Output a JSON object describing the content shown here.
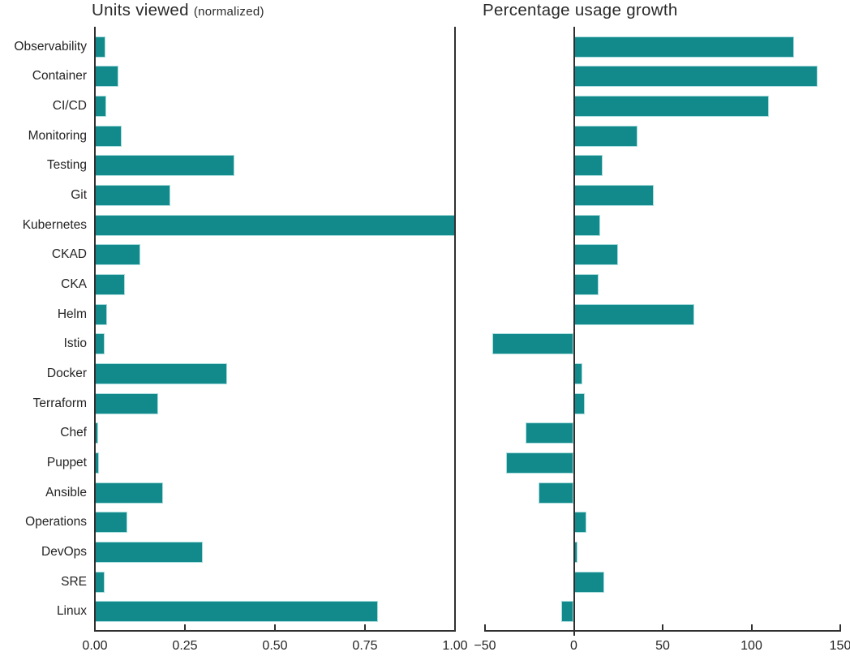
{
  "figure": {
    "background": "#ffffff",
    "bar_color": "#12898b",
    "bar_edge_color": "#a9dcdd",
    "axis_color": "#303030",
    "text_color": "#242424"
  },
  "chart_data": [
    {
      "type": "bar",
      "orientation": "horizontal",
      "title": "Units viewed",
      "subtitle": "(normalized)",
      "categories": [
        "Observability",
        "Container",
        "CI/CD",
        "Monitoring",
        "Testing",
        "Git",
        "Kubernetes",
        "CKAD",
        "CKA",
        "Helm",
        "Istio",
        "Docker",
        "Terraform",
        "Chef",
        "Puppet",
        "Ansible",
        "Operations",
        "DevOps",
        "SRE",
        "Linux"
      ],
      "values": [
        0.03,
        0.065,
        0.031,
        0.075,
        0.387,
        0.21,
        1.0,
        0.126,
        0.083,
        0.034,
        0.027,
        0.367,
        0.176,
        0.01,
        0.011,
        0.19,
        0.09,
        0.3,
        0.027,
        0.786
      ],
      "xlim": [
        0,
        1.0
      ],
      "xticks": [
        0,
        0.25,
        0.5,
        0.75,
        1.0
      ],
      "xtick_labels": [
        "0.00",
        "0.25",
        "0.50",
        "0.75",
        "1.00"
      ],
      "grid": false,
      "legend": "none",
      "spines": [
        "left",
        "right",
        "bottom"
      ],
      "category_labels_shown": true
    },
    {
      "type": "bar",
      "orientation": "horizontal",
      "title": "Percentage usage growth",
      "subtitle": "",
      "categories": [
        "Observability",
        "Container",
        "CI/CD",
        "Monitoring",
        "Testing",
        "Git",
        "Kubernetes",
        "CKAD",
        "CKA",
        "Helm",
        "Istio",
        "Docker",
        "Terraform",
        "Chef",
        "Puppet",
        "Ansible",
        "Operations",
        "DevOps",
        "SRE",
        "Linux"
      ],
      "values": [
        124,
        137,
        110,
        36,
        16,
        45,
        15,
        25,
        14,
        68,
        -46,
        5,
        6,
        -27,
        -38,
        -20,
        7,
        2,
        17,
        -7
      ],
      "xlim": [
        -50,
        150
      ],
      "xticks": [
        -50,
        0,
        50,
        100,
        150
      ],
      "xtick_labels": [
        "−50",
        "0",
        "50",
        "100",
        "150"
      ],
      "grid": false,
      "legend": "none",
      "spines": [
        "bottom",
        "zero"
      ],
      "category_labels_shown": false
    }
  ]
}
